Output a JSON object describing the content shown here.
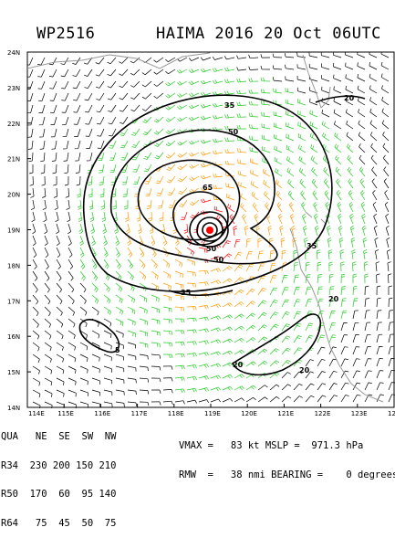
{
  "header": {
    "storm_id": "WP2516",
    "title": "HAIMA 2016 20 Oct 06UTC"
  },
  "map": {
    "lat_labels": [
      "24N",
      "23N",
      "22N",
      "21N",
      "20N",
      "19N",
      "18N",
      "17N",
      "16N",
      "15N",
      "14N"
    ],
    "lon_labels": [
      "114E",
      "115E",
      "116E",
      "117E",
      "118E",
      "119E",
      "120E",
      "121E",
      "122E",
      "123E",
      "12"
    ],
    "contour_labels": [
      {
        "id": "c35a",
        "text": "35"
      },
      {
        "id": "c50a",
        "text": "50"
      },
      {
        "id": "c65",
        "text": "65"
      },
      {
        "id": "c50b",
        "text": "50"
      },
      {
        "id": "c50c",
        "text": "50"
      },
      {
        "id": "c35b",
        "text": "35"
      },
      {
        "id": "c35c",
        "text": "35"
      },
      {
        "id": "c20a",
        "text": "20"
      },
      {
        "id": "c20b",
        "text": "20"
      },
      {
        "id": "c20c",
        "text": "20"
      },
      {
        "id": "c20d",
        "text": "20"
      },
      {
        "id": "c5",
        "text": "5"
      }
    ],
    "colors": {
      "low_wind": "#000000",
      "tropical_storm": "#22cc22",
      "storm_50kt": "#ff9900",
      "hurricane": "#ff0000",
      "coastline": "#999999"
    }
  },
  "info": {
    "quadrant_header": "QUA   NE  SE  SW  NW",
    "r34": "R34  230 200 150 210",
    "r50": "R50  170  60  95 140",
    "r64": "R64   75  45  50  75",
    "vmax_line": "VMAX =   83 kt MSLP =  971.3 hPa",
    "rmw_line": "RMW  =   38 nmi BEARING =    0 degrees"
  }
}
